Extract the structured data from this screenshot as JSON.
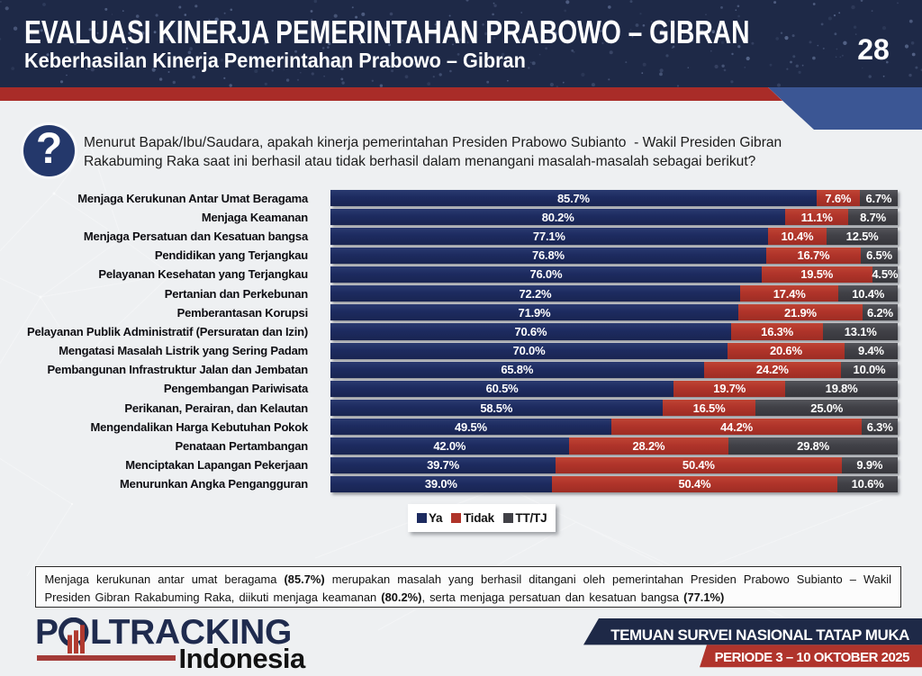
{
  "header": {
    "title": "EVALUASI KINERJA PEMERINTAHAN PRABOWO – GIBRAN",
    "subtitle": "Keberhasilan Kinerja Pemerintahan Prabowo – Gibran",
    "page_number": "28"
  },
  "question": {
    "icon": "?",
    "line1": "Menurut Bapak/Ibu/Saudara, apakah kinerja pemerintahan Presiden Prabowo Subianto  - Wakil Presiden Gibran",
    "line2": "Rakabuming Raka saat ini berhasil atau tidak berhasil dalam menangani masalah-masalah sebagai berikut?"
  },
  "chart_data": {
    "type": "bar",
    "orientation": "horizontal",
    "stacked": true,
    "unit": "%",
    "xlim": [
      0,
      100
    ],
    "legend_position": "bottom",
    "categories": [
      "Menjaga Kerukunan Antar Umat Beragama",
      "Menjaga Keamanan",
      "Menjaga Persatuan dan Kesatuan bangsa",
      "Pendidikan yang Terjangkau",
      "Pelayanan Kesehatan yang Terjangkau",
      "Pertanian dan Perkebunan",
      "Pemberantasan Korupsi",
      "Pelayanan Publik Administratif (Persuratan dan Izin)",
      "Mengatasi Masalah Listrik yang Sering Padam",
      "Pembangunan Infrastruktur Jalan dan Jembatan",
      "Pengembangan Pariwisata",
      "Perikanan, Perairan, dan Kelautan",
      "Mengendalikan Harga Kebutuhan Pokok",
      "Penataan Pertambangan",
      "Menciptakan Lapangan Pekerjaan",
      "Menurunkan Angka Pengangguran"
    ],
    "series": [
      {
        "name": "Ya",
        "color": "#1d2b60",
        "values": [
          85.7,
          80.2,
          77.1,
          76.8,
          76.0,
          72.2,
          71.9,
          70.6,
          70.0,
          65.8,
          60.5,
          58.5,
          49.5,
          42.0,
          39.7,
          39.0
        ]
      },
      {
        "name": "Tidak",
        "color": "#b0342a",
        "values": [
          7.6,
          11.1,
          10.4,
          16.7,
          19.5,
          17.4,
          21.9,
          16.3,
          20.6,
          24.2,
          19.7,
          16.5,
          44.2,
          28.2,
          50.4,
          50.4
        ]
      },
      {
        "name": "TT/TJ",
        "color": "#414147",
        "values": [
          6.7,
          8.7,
          12.5,
          6.5,
          4.5,
          10.4,
          6.2,
          13.1,
          9.4,
          10.0,
          19.8,
          25.0,
          6.3,
          29.8,
          9.9,
          10.6
        ]
      }
    ]
  },
  "summary": {
    "parts": [
      {
        "text": "Menjaga kerukunan antar umat beragama ",
        "bold": false
      },
      {
        "text": "(85.7%)",
        "bold": true
      },
      {
        "text": " merupakan masalah yang berhasil ditangani oleh pemerintahan Presiden Prabowo Subianto – Wakil Presiden Gibran Rakabuming Raka, diikuti menjaga keamanan ",
        "bold": false
      },
      {
        "text": "(80.2%)",
        "bold": true
      },
      {
        "text": ", serta menjaga persatuan dan kesatuan bangsa ",
        "bold": false
      },
      {
        "text": "(77.1%)",
        "bold": true
      }
    ]
  },
  "footer": {
    "logo_p": "P",
    "logo_rest": "LTRACKING",
    "logo_sub": "Indonesia",
    "banner_line1": "TEMUAN SURVEI NASIONAL TATAP MUKA",
    "banner_line2": "PERIODE 3 – 10 OKTOBER 2025"
  },
  "colors": {
    "header_navy": "#1e2947",
    "band_blue": "#3b5694",
    "band_red": "#a92c28",
    "footer_navy": "#1e2947",
    "footer_red": "#b0342c",
    "background": "#eef0f2"
  }
}
